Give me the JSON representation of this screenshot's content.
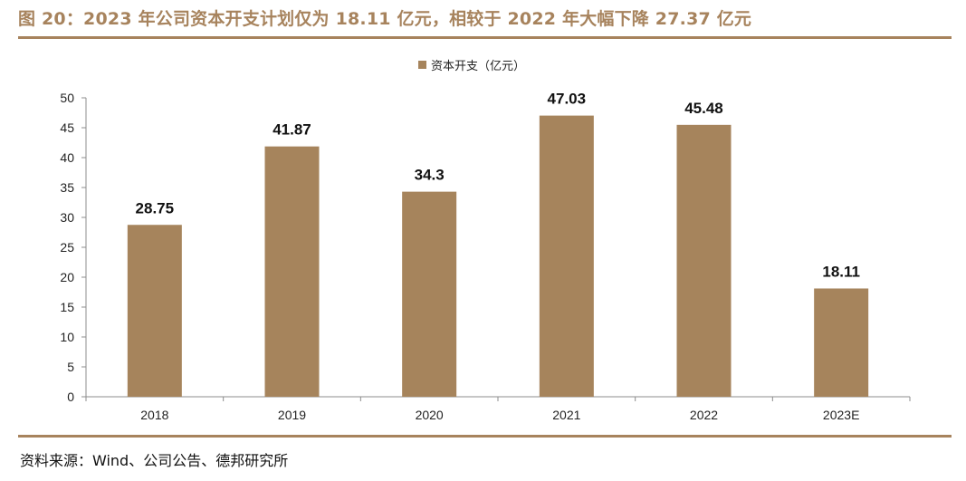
{
  "figure": {
    "title": "图 20：2023 年公司资本开支计划仅为 18.11 亿元，相较于 2022 年大幅下降 27.37 亿元",
    "source": "资料来源：Wind、公司公告、德邦研究所"
  },
  "colors": {
    "accent": "#a7835d",
    "bar": "#a6845c",
    "axis": "#8c8c8c"
  },
  "chart_data": {
    "type": "bar",
    "title": "",
    "xlabel": "",
    "ylabel": "",
    "categories": [
      "2018",
      "2019",
      "2020",
      "2021",
      "2022",
      "2023E"
    ],
    "series": [
      {
        "name": "资本开支（亿元）",
        "values": [
          28.75,
          41.87,
          34.3,
          47.03,
          45.48,
          18.11
        ]
      }
    ],
    "data_labels": [
      "28.75",
      "41.87",
      "34.3",
      "47.03",
      "45.48",
      "18.11"
    ],
    "ylim": [
      0,
      50
    ],
    "yticks": [
      0,
      5,
      10,
      15,
      20,
      25,
      30,
      35,
      40,
      45,
      50
    ],
    "grid": false,
    "legend_position": "top-center"
  }
}
